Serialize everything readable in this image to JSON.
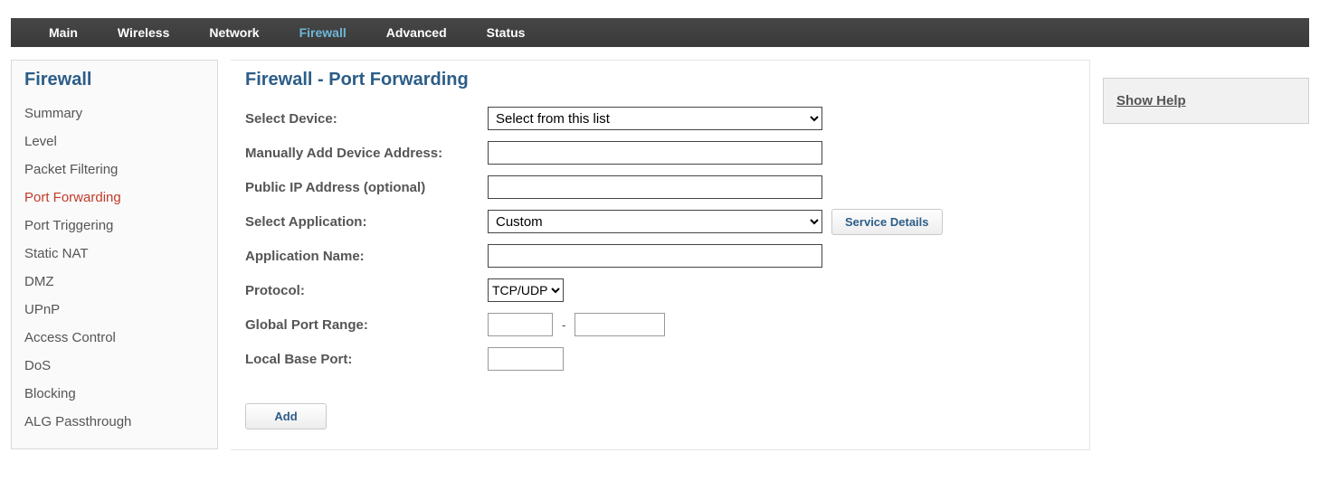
{
  "topnav": {
    "items": [
      {
        "label": "Main",
        "active": false
      },
      {
        "label": "Wireless",
        "active": false
      },
      {
        "label": "Network",
        "active": false
      },
      {
        "label": "Firewall",
        "active": true
      },
      {
        "label": "Advanced",
        "active": false
      },
      {
        "label": "Status",
        "active": false
      }
    ]
  },
  "sidebar": {
    "title": "Firewall",
    "items": [
      {
        "label": "Summary",
        "active": false
      },
      {
        "label": "Level",
        "active": false
      },
      {
        "label": "Packet Filtering",
        "active": false
      },
      {
        "label": "Port Forwarding",
        "active": true
      },
      {
        "label": "Port Triggering",
        "active": false
      },
      {
        "label": "Static NAT",
        "active": false
      },
      {
        "label": "DMZ",
        "active": false
      },
      {
        "label": "UPnP",
        "active": false
      },
      {
        "label": "Access Control",
        "active": false
      },
      {
        "label": "DoS",
        "active": false
      },
      {
        "label": "Blocking",
        "active": false
      },
      {
        "label": "ALG Passthrough",
        "active": false
      }
    ]
  },
  "main": {
    "title": "Firewall - Port Forwarding",
    "labels": {
      "select_device": "Select Device:",
      "manual_address": "Manually Add Device Address:",
      "public_ip": "Public IP Address (optional)",
      "select_app": "Select Application:",
      "app_name": "Application Name:",
      "protocol": "Protocol:",
      "global_port_range": "Global Port Range:",
      "local_base_port": "Local Base Port:"
    },
    "select_device_options": [
      "Select from this list"
    ],
    "select_device_value": "Select from this list",
    "manual_address_value": "",
    "public_ip_value": "",
    "select_app_options": [
      "Custom"
    ],
    "select_app_value": "Custom",
    "service_details_label": "Service Details",
    "app_name_value": "",
    "protocol_options": [
      "TCP/UDP"
    ],
    "protocol_value": "TCP/UDP",
    "global_port_from": "",
    "global_port_to": "",
    "local_base_port_value": "",
    "add_button_label": "Add"
  },
  "help": {
    "show_help": "Show Help"
  },
  "colors": {
    "nav_bg": "#3d3d3d",
    "nav_active": "#6fb7d6",
    "heading": "#2c5d87",
    "sidebar_active": "#c23a2a",
    "border": "#d9d9d9",
    "helpbox_bg": "#f1f1f1"
  }
}
